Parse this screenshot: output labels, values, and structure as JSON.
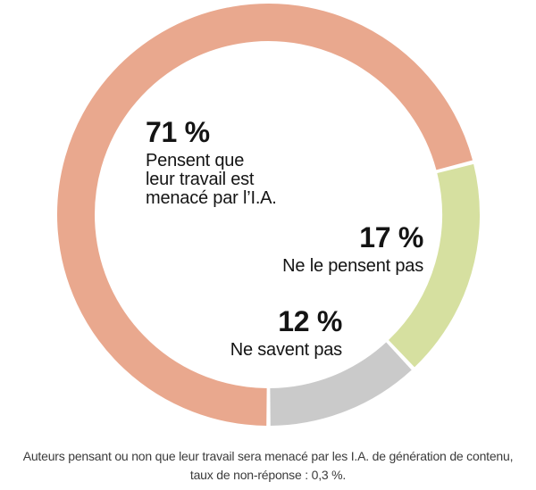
{
  "chart_data": {
    "type": "pie",
    "subtype": "donut",
    "title": "",
    "unit": "%",
    "categories": [
      "Pensent que leur travail est menacé par l’I.A.",
      "Ne le pensent pas",
      "Ne savent pas"
    ],
    "values": [
      71,
      17,
      12
    ],
    "segments": [
      {
        "value": 71,
        "pct_label": "71 %",
        "color": "#e9a88e",
        "label_lines": [
          "Pensent que",
          "leur travail est",
          "menacé par l’I.A."
        ]
      },
      {
        "value": 17,
        "pct_label": "17 %",
        "color": "#d6e0a0",
        "label_lines": [
          "Ne le pensent pas"
        ]
      },
      {
        "value": 12,
        "pct_label": "12 %",
        "color": "#cacaca",
        "label_lines": [
          "Ne savent pas"
        ]
      }
    ],
    "start_angle_deg_from_top": 180,
    "direction": "clockwise",
    "gap_deg": 1.1,
    "legend_position": "labels-inside-donut",
    "caption_line1": "Auteurs pensant ou non que leur travail sera menacé par les I.A. de génération de contenu,",
    "caption_line2": "taux de non-réponse : 0,3 %."
  }
}
